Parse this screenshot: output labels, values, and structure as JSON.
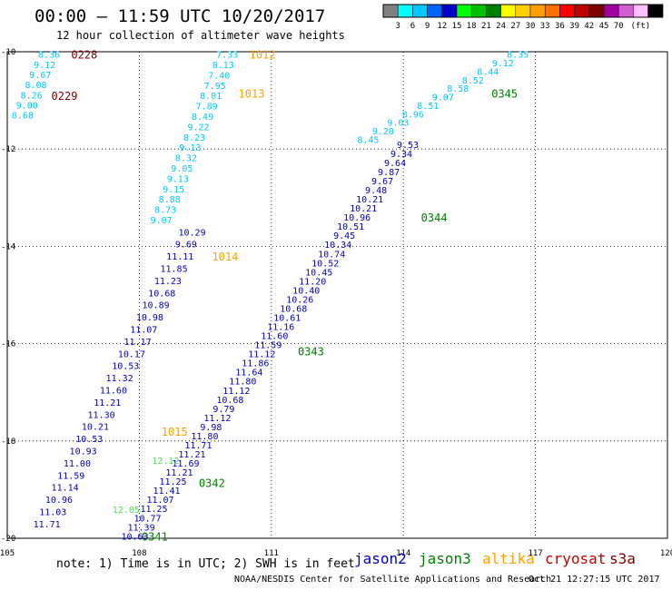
{
  "header": {
    "title": "00:00 – 11:59 UTC 10/20/2017",
    "subtitle": "12 hour collection of altimeter wave heights"
  },
  "color_scale": {
    "colors": [
      "#808080",
      "#00ffff",
      "#00c8ff",
      "#0064ff",
      "#0000c8",
      "#00ff00",
      "#00c000",
      "#008000",
      "#ffff00",
      "#ffd000",
      "#ffa000",
      "#ff7000",
      "#ff0000",
      "#c00000",
      "#800000",
      "#a000a0",
      "#d060d0",
      "#ffc0ff",
      "#000000"
    ],
    "labels": [
      "3",
      "6",
      "9",
      "12",
      "15",
      "18",
      "21",
      "24",
      "27",
      "30",
      "33",
      "36",
      "39",
      "42",
      "45",
      "70"
    ],
    "unit": "(ft)"
  },
  "map": {
    "lon_range": [
      105,
      120
    ],
    "lat_range": [
      -10,
      -20
    ],
    "lon_ticks": [
      "105",
      "108",
      "111",
      "114",
      "117",
      "120"
    ],
    "lat_ticks": [
      "-10",
      "-12",
      "-14",
      "-16",
      "-18",
      "-20"
    ],
    "grid_style": "dotted"
  },
  "tracks": [
    {
      "name": "jason2",
      "color": "#0000c8",
      "start": [
        107.9,
        -19.95
      ],
      "end": [
        114.1,
        -11.9
      ],
      "values": [
        "10.63",
        "11.39",
        "10.77",
        "11.25",
        "11.07",
        "11.41",
        "11.25",
        "11.21",
        "11.69",
        "11.21",
        "11.71",
        "11.80",
        "9.98",
        "11.12",
        "9.79",
        "10.68",
        "11.12",
        "11.80",
        "11.64",
        "11.86",
        "11.12",
        "11.59",
        "11.60",
        "11.16",
        "10.61",
        "10.68",
        "10.26",
        "10.40",
        "11.20",
        "10.45",
        "10.52",
        "10.74",
        "10.34",
        "9.45",
        "10.51",
        "10.96",
        "10.21",
        "10.21",
        "9.48",
        "9.67",
        "9.87",
        "9.64",
        "9.34",
        "9.53"
      ]
    },
    {
      "name": "jason2-b",
      "color": "#0000c8",
      "start": [
        105.9,
        -19.7
      ],
      "end": [
        109.2,
        -13.7
      ],
      "values": [
        "11.71",
        "11.03",
        "10.96",
        "11.14",
        "11.59",
        "11.00",
        "10.93",
        "10.53",
        "10.21",
        "11.30",
        "11.21",
        "11.60",
        "11.32",
        "10.53",
        "10.17",
        "11.17",
        "11.07",
        "10.98",
        "10.89",
        "10.68",
        "11.23",
        "11.85",
        "11.11",
        "9.69",
        "10.29"
      ]
    },
    {
      "name": "jason2-c",
      "color": "#00c8ff",
      "start": [
        108.5,
        -13.45
      ],
      "end": [
        110.0,
        -10.05
      ],
      "values": [
        "9.07",
        "8.73",
        "8.88",
        "9.15",
        "9.13",
        "9.05",
        "8.32",
        "9.13",
        "8.23",
        "9.22",
        "8.49",
        "7.89",
        "8.01",
        "7.95",
        "7.40",
        "8.13",
        "7.33"
      ]
    },
    {
      "name": "cryosat-like-nw",
      "color": "#00c8ff",
      "start": [
        105.35,
        -11.3
      ],
      "end": [
        105.95,
        -10.05
      ],
      "values": [
        "8.68",
        "9.00",
        "8.26",
        "8.08",
        "9.67",
        "9.12",
        "8.36"
      ]
    },
    {
      "name": "jason3",
      "color": "#00c8ff",
      "start": [
        113.2,
        -11.8
      ],
      "end": [
        116.6,
        -10.05
      ],
      "values": [
        "8.45",
        "9.20",
        "9.03",
        "8.96",
        "8.51",
        "9.07",
        "8.58",
        "8.52",
        "8.44",
        "9.12",
        "8.35"
      ]
    }
  ],
  "track_values_light": [
    {
      "text": "12.05",
      "lon": 107.7,
      "lat": -19.4,
      "color": "#50e050"
    },
    {
      "text": "12.12",
      "lon": 108.6,
      "lat": -18.4,
      "color": "#50e050"
    }
  ],
  "pass_labels": [
    {
      "text": "0228",
      "lon": 106.75,
      "lat": -10.05,
      "color": "#800000"
    },
    {
      "text": "0229",
      "lon": 106.3,
      "lat": -10.9,
      "color": "#800000"
    },
    {
      "text": "1012",
      "lon": 110.8,
      "lat": -10.05,
      "color": "#ffa000"
    },
    {
      "text": "1013",
      "lon": 110.55,
      "lat": -10.85,
      "color": "#ffa000"
    },
    {
      "text": "1014",
      "lon": 109.95,
      "lat": -14.2,
      "color": "#ffa000"
    },
    {
      "text": "1015",
      "lon": 108.8,
      "lat": -17.8,
      "color": "#ffa000"
    },
    {
      "text": "0341",
      "lon": 108.35,
      "lat": -19.95,
      "color": "#008000"
    },
    {
      "text": "0342",
      "lon": 109.65,
      "lat": -18.85,
      "color": "#008000"
    },
    {
      "text": "0343",
      "lon": 111.9,
      "lat": -16.15,
      "color": "#008000"
    },
    {
      "text": "0344",
      "lon": 114.7,
      "lat": -13.4,
      "color": "#008000"
    },
    {
      "text": "0345",
      "lon": 116.3,
      "lat": -10.85,
      "color": "#008000"
    }
  ],
  "footer": {
    "note": "note: 1) Time is in UTC; 2) SWH is in feet",
    "satellites": [
      {
        "name": "jason2",
        "color": "#0000c8"
      },
      {
        "name": "jason3",
        "color": "#008000"
      },
      {
        "name": "altika",
        "color": "#ffa000"
      },
      {
        "name": "cryosat",
        "color": "#c00000"
      },
      {
        "name": "s3a",
        "color": "#800000"
      }
    ],
    "credit": "NOAA/NESDIS Center for Satellite Applications and Research",
    "timestamp": "Oct 21 12:27:15 UTC 2017"
  }
}
